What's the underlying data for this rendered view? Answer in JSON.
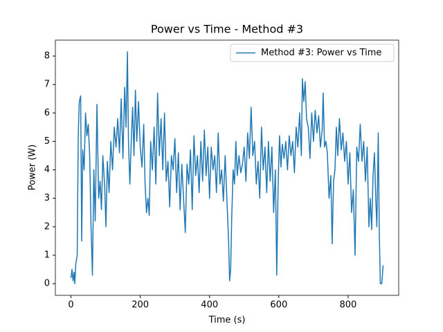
{
  "chart_data": {
    "type": "line",
    "title": "Power vs Time - Method #3",
    "xlabel": "Time (s)",
    "ylabel": "Power (W)",
    "x": [
      0,
      3,
      6,
      9,
      11,
      14,
      18,
      21,
      24,
      28,
      31,
      34,
      38,
      42,
      46,
      50,
      54,
      58,
      62,
      66,
      70,
      75,
      80,
      84,
      88,
      92,
      97,
      101,
      105,
      110,
      115,
      120,
      125,
      130,
      135,
      140,
      145,
      150,
      155,
      159,
      163,
      166,
      170,
      174,
      178,
      182,
      186,
      190,
      195,
      200,
      205,
      210,
      214,
      218,
      222,
      226,
      230,
      235,
      240,
      245,
      250,
      255,
      260,
      265,
      270,
      275,
      280,
      285,
      290,
      295,
      300,
      305,
      310,
      315,
      320,
      325,
      330,
      335,
      340,
      345,
      350,
      355,
      360,
      365,
      370,
      375,
      380,
      385,
      390,
      395,
      400,
      405,
      410,
      415,
      420,
      425,
      430,
      435,
      440,
      445,
      450,
      455,
      458,
      461,
      464,
      468,
      472,
      476,
      480,
      485,
      490,
      495,
      500,
      505,
      510,
      515,
      520,
      525,
      530,
      535,
      540,
      545,
      550,
      555,
      560,
      565,
      570,
      575,
      580,
      585,
      590,
      594,
      598,
      602,
      606,
      610,
      615,
      620,
      625,
      630,
      635,
      640,
      645,
      650,
      655,
      660,
      665,
      668,
      672,
      676,
      680,
      685,
      690,
      695,
      700,
      705,
      710,
      715,
      720,
      725,
      728,
      732,
      736,
      740,
      745,
      750,
      754,
      758,
      762,
      766,
      770,
      775,
      780,
      785,
      790,
      795,
      800,
      805,
      810,
      815,
      820,
      825,
      830,
      835,
      840,
      845,
      850,
      855,
      860,
      864,
      868,
      872,
      876,
      880,
      883,
      887,
      890,
      893,
      897,
      899,
      901
    ],
    "series": [
      {
        "name": "Method #3: Power vs Time",
        "color": "#1f77b4",
        "values": [
          0.2,
          0.5,
          0.1,
          0.4,
          0.0,
          0.7,
          1.0,
          5.2,
          6.4,
          6.6,
          1.5,
          4.7,
          4.0,
          6.0,
          5.2,
          5.6,
          4.5,
          2.0,
          0.3,
          4.0,
          2.2,
          6.3,
          3.0,
          3.6,
          2.6,
          4.5,
          3.5,
          2.0,
          4.3,
          3.2,
          5.0,
          4.0,
          5.5,
          4.8,
          5.8,
          4.6,
          6.5,
          4.4,
          6.9,
          5.5,
          8.15,
          5.0,
          3.5,
          5.0,
          6.2,
          4.5,
          6.8,
          5.0,
          6.4,
          4.8,
          4.1,
          5.6,
          3.5,
          2.5,
          3.0,
          2.4,
          5.0,
          4.0,
          5.5,
          3.5,
          6.7,
          4.5,
          5.8,
          4.0,
          6.0,
          3.6,
          4.3,
          2.7,
          4.5,
          4.0,
          5.1,
          3.2,
          4.6,
          2.6,
          4.2,
          3.0,
          1.8,
          4.2,
          3.5,
          4.7,
          2.6,
          5.2,
          3.8,
          4.5,
          3.2,
          5.0,
          3.6,
          5.4,
          3.8,
          4.8,
          3.0,
          4.8,
          4.0,
          4.5,
          3.2,
          5.3,
          3.5,
          4.0,
          2.9,
          4.5,
          3.0,
          1.5,
          0.1,
          0.5,
          2.3,
          4.0,
          3.5,
          5.0,
          3.8,
          4.5,
          3.9,
          4.2,
          4.8,
          3.6,
          5.3,
          4.4,
          6.2,
          4.5,
          5.0,
          3.5,
          4.3,
          3.0,
          5.5,
          4.0,
          4.8,
          3.2,
          5.0,
          3.6,
          4.8,
          2.5,
          4.0,
          0.3,
          3.5,
          5.2,
          4.1,
          4.9,
          4.4,
          5.0,
          4.0,
          5.2,
          4.5,
          5.0,
          3.9,
          5.5,
          4.8,
          6.0,
          4.5,
          7.2,
          6.4,
          7.1,
          5.8,
          5.5,
          4.4,
          6.0,
          5.0,
          6.1,
          5.3,
          5.9,
          4.8,
          5.4,
          6.7,
          4.8,
          5.0,
          4.6,
          3.0,
          3.8,
          1.4,
          3.6,
          4.0,
          5.5,
          4.5,
          5.8,
          4.7,
          5.3,
          4.3,
          5.0,
          3.5,
          4.6,
          2.5,
          3.3,
          1.0,
          4.8,
          4.3,
          5.6,
          4.3,
          5.0,
          3.6,
          4.8,
          2.0,
          3.0,
          1.9,
          3.8,
          4.6,
          2.9,
          2.0,
          5.3,
          1.8,
          0.0,
          0.0,
          0.3,
          0.65
        ]
      }
    ],
    "xlim": [
      -45,
      946
    ],
    "ylim": [
      -0.41,
      8.56
    ],
    "xticks": [
      0,
      200,
      400,
      600,
      800
    ],
    "yticks": [
      0,
      1,
      2,
      3,
      4,
      5,
      6,
      7,
      8
    ],
    "legend": "upper right"
  }
}
